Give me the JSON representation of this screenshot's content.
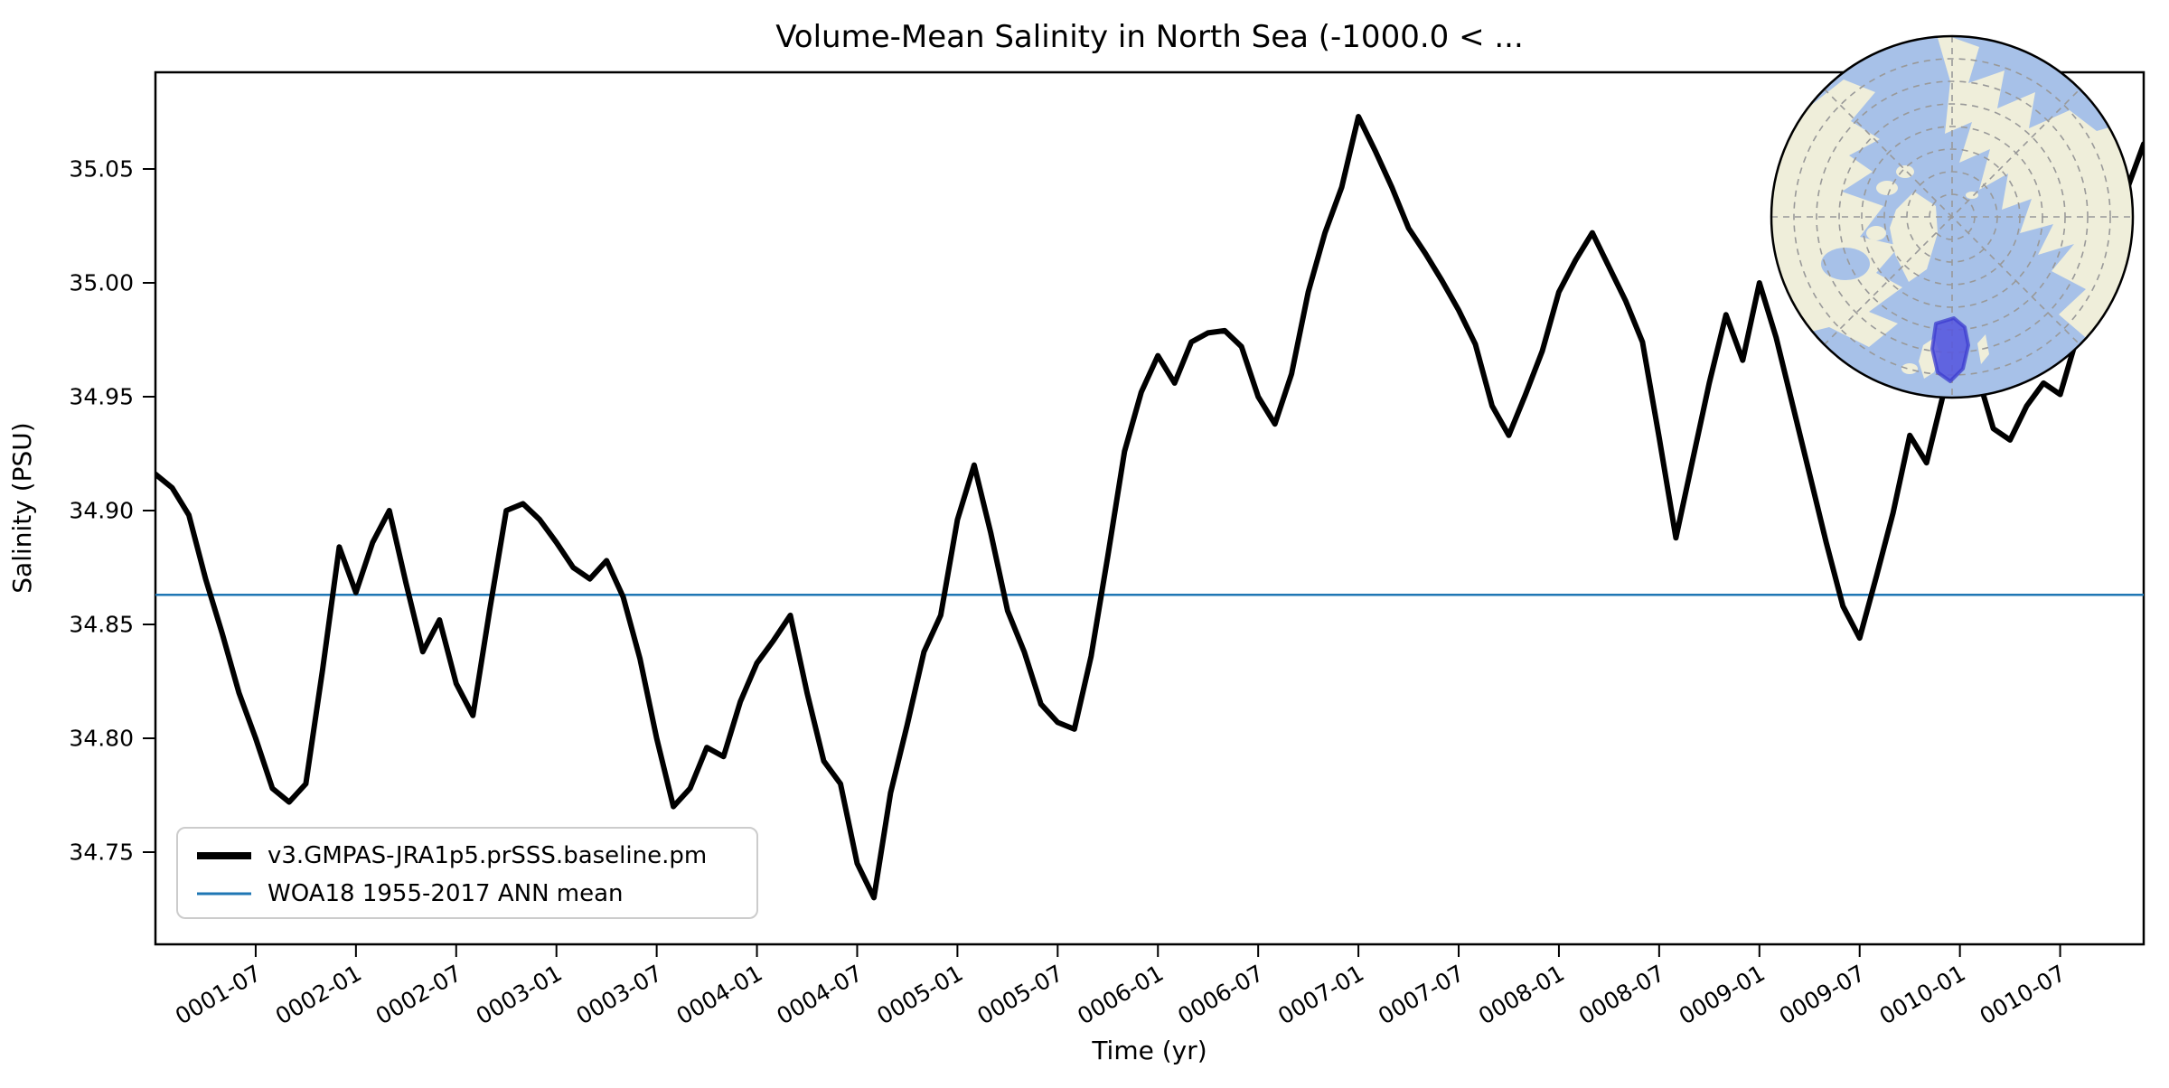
{
  "title": "Volume-Mean Salinity in North Sea (-1000.0 < ...",
  "axes": {
    "xlabel": "Time (yr)",
    "ylabel": "Salinity (PSU)",
    "ytick_labels": [
      "34.75",
      "34.80",
      "34.85",
      "34.90",
      "34.95",
      "35.00",
      "35.05"
    ]
  },
  "legend": {
    "entries": [
      {
        "label": "v3.GMPAS-JRA1p5.prSSS.baseline.pm",
        "color": "#000000",
        "swatch_width": 8
      },
      {
        "label": "WOA18 1955-2017 ANN mean",
        "color": "#1f77b4",
        "swatch_width": 3
      }
    ]
  },
  "chart_data": {
    "type": "line",
    "title": "Volume-Mean Salinity in North Sea (-1000.0 < ...",
    "xlabel": "Time (yr)",
    "ylabel": "Salinity (PSU)",
    "x_start": "0001-01",
    "x_end": "0010-12",
    "x_step": "1 month",
    "ylim": [
      34.71,
      35.092
    ],
    "yticks": [
      34.75,
      34.8,
      34.85,
      34.9,
      34.95,
      35.0,
      35.05
    ],
    "grid": false,
    "legend_position": "lower left",
    "xticks": {
      "month_indices": [
        6,
        12,
        18,
        24,
        30,
        36,
        42,
        48,
        54,
        60,
        66,
        72,
        78,
        84,
        90,
        96,
        102,
        108,
        114
      ],
      "labels": [
        "0001-07",
        "0002-01",
        "0002-07",
        "0003-01",
        "0003-07",
        "0004-01",
        "0004-07",
        "0005-01",
        "0005-07",
        "0006-01",
        "0006-07",
        "0007-01",
        "0007-07",
        "0008-01",
        "0008-07",
        "0009-01",
        "0009-07",
        "0010-01",
        "0010-07"
      ],
      "rotation_deg": 30
    },
    "series": [
      {
        "name": "v3.GMPAS-JRA1p5.prSSS.baseline.pm",
        "color": "#000000",
        "line_width": 6,
        "values": [
          34.916,
          34.91,
          34.898,
          34.87,
          34.846,
          34.82,
          34.8,
          34.778,
          34.772,
          34.78,
          34.83,
          34.884,
          34.864,
          34.886,
          34.9,
          34.868,
          34.838,
          34.852,
          34.824,
          34.81,
          34.856,
          34.9,
          34.903,
          34.896,
          34.886,
          34.875,
          34.87,
          34.878,
          34.862,
          34.835,
          34.8,
          34.77,
          34.778,
          34.796,
          34.792,
          34.816,
          34.833,
          34.843,
          34.854,
          34.82,
          34.79,
          34.78,
          34.745,
          34.73,
          34.776,
          34.806,
          34.838,
          34.854,
          34.896,
          34.92,
          34.89,
          34.856,
          34.838,
          34.815,
          34.807,
          34.804,
          34.836,
          34.88,
          34.926,
          34.952,
          34.968,
          34.956,
          34.974,
          34.978,
          34.979,
          34.972,
          34.95,
          34.938,
          34.96,
          34.996,
          35.022,
          35.042,
          35.073,
          35.058,
          35.042,
          35.024,
          35.013,
          35.001,
          34.988,
          34.973,
          34.946,
          34.933,
          34.951,
          34.97,
          34.996,
          35.01,
          35.022,
          35.007,
          34.992,
          34.974,
          34.932,
          34.888,
          34.922,
          34.956,
          34.986,
          34.966,
          35.0,
          34.976,
          34.946,
          34.916,
          34.886,
          34.858,
          34.844,
          34.871,
          34.899,
          34.933,
          34.921,
          34.951,
          34.986,
          34.961,
          34.936,
          34.931,
          34.946,
          34.956,
          34.951,
          34.976,
          35.001,
          35.021,
          35.041,
          35.061
        ]
      },
      {
        "name": "WOA18 1955-2017 ANN mean",
        "color": "#1f77b4",
        "line_width": 2.5,
        "constant_value": 34.863
      }
    ]
  },
  "inset_map": {
    "description": "North polar stereographic inset with North Sea region highlighted",
    "highlighted_region": "North Sea",
    "ocean_color": "#a7c1e8",
    "land_color": "#efeeda",
    "graticule_color": "#999999",
    "region_fill": "#5757de",
    "region_border": "#3c3ccf",
    "outline_color": "#000000"
  }
}
